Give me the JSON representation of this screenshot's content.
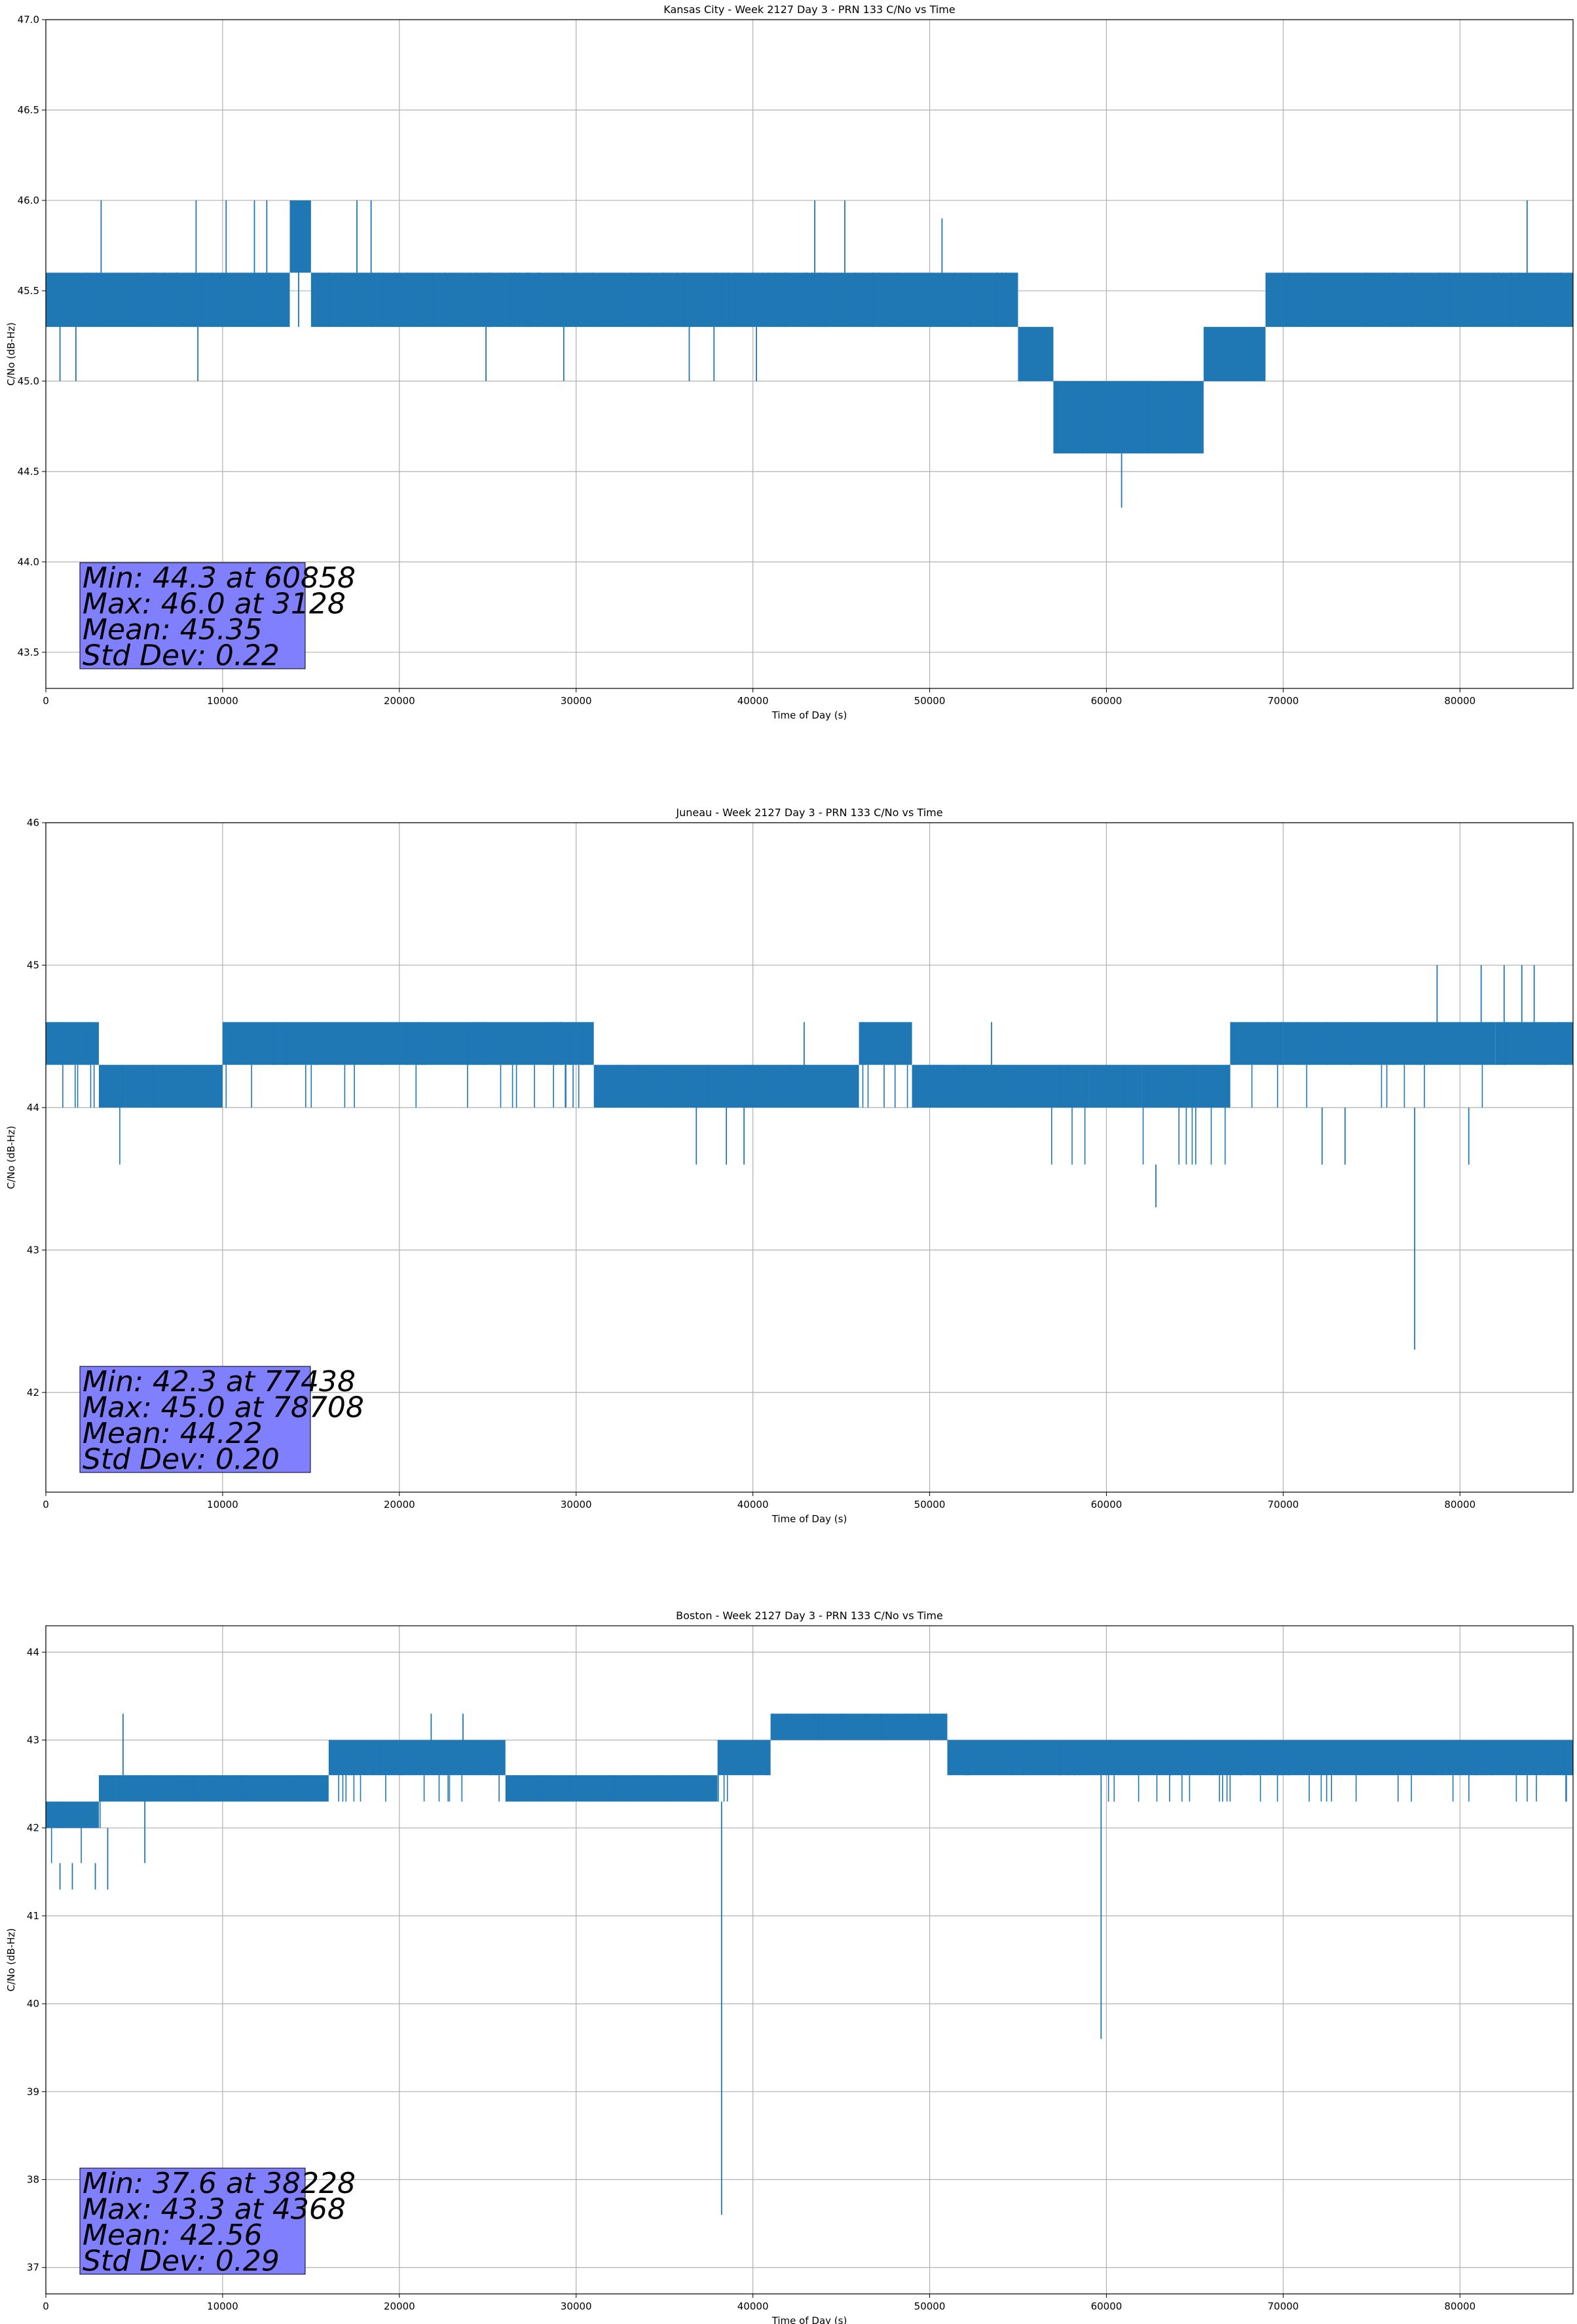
{
  "colors": {
    "series": "#1f77b4",
    "grid": "#b0b0b0",
    "stats_box": "#8080ff"
  },
  "chart_data": [
    {
      "type": "line",
      "title": "Kansas City - Week 2127 Day 3 - PRN 133 C/No vs Time",
      "xlabel": "Time of Day (s)",
      "ylabel": "C/No (dB-Hz)",
      "xlim": [
        0,
        86400
      ],
      "ylim": [
        43.3,
        47.0
      ],
      "xticks": [
        0,
        10000,
        20000,
        30000,
        40000,
        50000,
        60000,
        70000,
        80000
      ],
      "xtick_labels": [
        "0",
        "10000",
        "20000",
        "30000",
        "40000",
        "50000",
        "60000",
        "70000",
        "80000"
      ],
      "yticks": [
        43.5,
        44.0,
        44.5,
        45.0,
        45.5,
        46.0,
        46.5,
        47.0
      ],
      "ytick_labels": [
        "43.5",
        "44.0",
        "44.5",
        "45.0",
        "45.5",
        "46.0",
        "46.5",
        "47.0"
      ],
      "grid": true,
      "bands": [
        {
          "x": [
            0,
            13800
          ],
          "levels": [
            45.3,
            45.6
          ]
        },
        {
          "x": [
            13800,
            15000
          ],
          "levels": [
            45.3,
            45.6,
            46.0
          ]
        },
        {
          "x": [
            15000,
            55000
          ],
          "levels": [
            45.3,
            45.6
          ]
        },
        {
          "x": [
            55000,
            57000
          ],
          "levels": [
            45.0,
            45.3
          ]
        },
        {
          "x": [
            57000,
            65500
          ],
          "levels": [
            44.6,
            45.0
          ]
        },
        {
          "x": [
            65500,
            69000
          ],
          "levels": [
            45.0,
            45.3
          ]
        },
        {
          "x": [
            69000,
            86400
          ],
          "levels": [
            45.3,
            45.6
          ]
        }
      ],
      "spikes": [
        {
          "x": 3128,
          "y": 46.0
        },
        {
          "x": 8500,
          "y": 46.0
        },
        {
          "x": 10200,
          "y": 46.0
        },
        {
          "x": 11800,
          "y": 46.0
        },
        {
          "x": 12500,
          "y": 46.0
        },
        {
          "x": 14300,
          "y": 46.0
        },
        {
          "x": 17600,
          "y": 46.0
        },
        {
          "x": 18400,
          "y": 46.0
        },
        {
          "x": 43500,
          "y": 46.0
        },
        {
          "x": 45200,
          "y": 46.0
        },
        {
          "x": 50700,
          "y": 45.9
        },
        {
          "x": 83800,
          "y": 46.0
        },
        {
          "x": 800,
          "y": 45.0
        },
        {
          "x": 1700,
          "y": 45.0
        },
        {
          "x": 8600,
          "y": 45.0
        },
        {
          "x": 24900,
          "y": 45.0
        },
        {
          "x": 29300,
          "y": 45.0
        },
        {
          "x": 36400,
          "y": 45.0
        },
        {
          "x": 37800,
          "y": 45.0
        },
        {
          "x": 40200,
          "y": 45.0
        },
        {
          "x": 60858,
          "y": 44.3
        }
      ],
      "stats": [
        "Min: 44.3 at 60858",
        "Max: 46.0 at 3128",
        "Mean: 45.35",
        "Std Dev: 0.22"
      ]
    },
    {
      "type": "line",
      "title": "Juneau - Week 2127 Day 3 - PRN 133 C/No vs Time",
      "xlabel": "Time of Day (s)",
      "ylabel": "C/No (dB-Hz)",
      "xlim": [
        0,
        86400
      ],
      "ylim": [
        41.3,
        46.0
      ],
      "xticks": [
        0,
        10000,
        20000,
        30000,
        40000,
        50000,
        60000,
        70000,
        80000
      ],
      "xtick_labels": [
        "0",
        "10000",
        "20000",
        "30000",
        "40000",
        "50000",
        "60000",
        "70000",
        "80000"
      ],
      "yticks": [
        42,
        43,
        44,
        45,
        46
      ],
      "ytick_labels": [
        "42",
        "43",
        "44",
        "45",
        "46"
      ],
      "grid": true,
      "bands": [
        {
          "x": [
            0,
            3000
          ],
          "levels": [
            44.0,
            44.3,
            44.6
          ]
        },
        {
          "x": [
            3000,
            4500
          ],
          "levels": [
            43.6,
            44.0,
            44.3
          ]
        },
        {
          "x": [
            4500,
            10000
          ],
          "levels": [
            44.0,
            44.3
          ]
        },
        {
          "x": [
            10000,
            31000
          ],
          "levels": [
            44.0,
            44.3,
            44.6
          ]
        },
        {
          "x": [
            31000,
            46000
          ],
          "levels": [
            44.0,
            44.3
          ]
        },
        {
          "x": [
            46000,
            49000
          ],
          "levels": [
            44.0,
            44.3,
            44.6
          ]
        },
        {
          "x": [
            49000,
            56000
          ],
          "levels": [
            44.0,
            44.3
          ]
        },
        {
          "x": [
            56000,
            59000
          ],
          "levels": [
            43.6,
            44.0,
            44.3
          ]
        },
        {
          "x": [
            59000,
            62000
          ],
          "levels": [
            44.0,
            44.3
          ]
        },
        {
          "x": [
            62000,
            67000
          ],
          "levels": [
            43.6,
            44.0,
            44.3
          ]
        },
        {
          "x": [
            67000,
            70000
          ],
          "levels": [
            44.0,
            44.3,
            44.6
          ]
        },
        {
          "x": [
            70000,
            82000
          ],
          "levels": [
            44.0,
            44.3,
            44.6
          ]
        },
        {
          "x": [
            82000,
            86400
          ],
          "levels": [
            44.3,
            44.6
          ]
        }
      ],
      "spikes": [
        {
          "x": 36800,
          "y": 43.6
        },
        {
          "x": 38500,
          "y": 43.6
        },
        {
          "x": 39500,
          "y": 43.6
        },
        {
          "x": 62800,
          "y": 43.3
        },
        {
          "x": 72200,
          "y": 43.6
        },
        {
          "x": 73500,
          "y": 43.6
        },
        {
          "x": 77438,
          "y": 42.3
        },
        {
          "x": 78708,
          "y": 45.0
        },
        {
          "x": 81200,
          "y": 45.0
        },
        {
          "x": 82500,
          "y": 45.0
        },
        {
          "x": 83500,
          "y": 45.0
        },
        {
          "x": 84200,
          "y": 45.0
        },
        {
          "x": 80500,
          "y": 43.6
        },
        {
          "x": 42900,
          "y": 44.6
        },
        {
          "x": 53500,
          "y": 44.6
        }
      ],
      "stats": [
        "Min: 42.3 at 77438",
        "Max: 45.0 at 78708",
        "Mean: 44.22",
        "Std Dev: 0.20"
      ]
    },
    {
      "type": "line",
      "title": "Boston - Week 2127 Day 3 - PRN 133 C/No vs Time",
      "xlabel": "Time of Day (s)",
      "ylabel": "C/No (dB-Hz)",
      "xlim": [
        0,
        86400
      ],
      "ylim": [
        36.7,
        44.3
      ],
      "xticks": [
        0,
        10000,
        20000,
        30000,
        40000,
        50000,
        60000,
        70000,
        80000
      ],
      "xtick_labels": [
        "0",
        "10000",
        "20000",
        "30000",
        "40000",
        "50000",
        "60000",
        "70000",
        "80000"
      ],
      "yticks": [
        37,
        38,
        39,
        40,
        41,
        42,
        43,
        44
      ],
      "ytick_labels": [
        "37",
        "38",
        "39",
        "40",
        "41",
        "42",
        "43",
        "44"
      ],
      "grid": true,
      "bands": [
        {
          "x": [
            0,
            3000
          ],
          "levels": [
            41.6,
            42.0,
            42.3
          ]
        },
        {
          "x": [
            3000,
            4000
          ],
          "levels": [
            42.0,
            42.3,
            42.6
          ]
        },
        {
          "x": [
            4000,
            16000
          ],
          "levels": [
            42.3,
            42.6
          ]
        },
        {
          "x": [
            16000,
            26000
          ],
          "levels": [
            42.3,
            42.6,
            43.0
          ]
        },
        {
          "x": [
            26000,
            38000
          ],
          "levels": [
            42.3,
            42.6
          ]
        },
        {
          "x": [
            38000,
            41000
          ],
          "levels": [
            42.3,
            42.6,
            43.0
          ]
        },
        {
          "x": [
            41000,
            51000
          ],
          "levels": [
            43.0,
            43.3
          ]
        },
        {
          "x": [
            51000,
            60000
          ],
          "levels": [
            42.6,
            43.0
          ]
        },
        {
          "x": [
            60000,
            86400
          ],
          "levels": [
            42.3,
            42.6,
            43.0
          ]
        }
      ],
      "spikes": [
        {
          "x": 800,
          "y": 41.3
        },
        {
          "x": 1500,
          "y": 41.3
        },
        {
          "x": 2800,
          "y": 41.3
        },
        {
          "x": 3500,
          "y": 41.3
        },
        {
          "x": 4368,
          "y": 43.3
        },
        {
          "x": 5600,
          "y": 41.6
        },
        {
          "x": 21800,
          "y": 43.3
        },
        {
          "x": 23600,
          "y": 43.3
        },
        {
          "x": 38228,
          "y": 37.6
        },
        {
          "x": 59700,
          "y": 39.6
        }
      ],
      "stats": [
        "Min: 37.6 at 38228",
        "Max: 43.3 at 4368",
        "Mean: 42.56",
        "Std Dev: 0.29"
      ]
    }
  ]
}
